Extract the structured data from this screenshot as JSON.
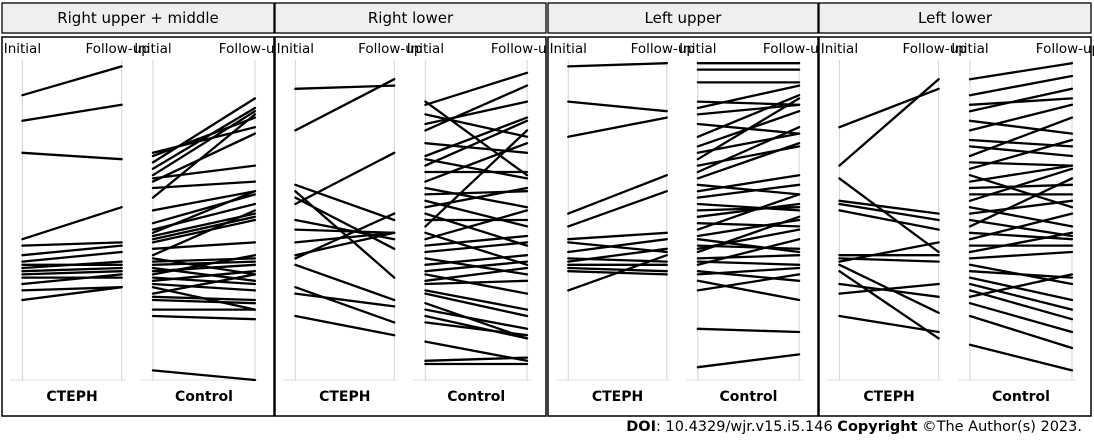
{
  "figure": {
    "footer": {
      "doi_label": "DOI",
      "doi_value": ": 10.4329/wjr.v15.i5.146",
      "copyright_label": "Copyright",
      "copyright_value": " ©The Author(s) 2023."
    }
  },
  "chart_data": [
    {
      "type": "line",
      "panel": "Right upper + middle",
      "groups": [
        {
          "name": "CTEPH",
          "x": [
            "Initial",
            "Follow-up"
          ],
          "ylim": [
            0,
            1
          ],
          "pairs": [
            [
              0.89,
              0.98
            ],
            [
              0.81,
              0.86
            ],
            [
              0.71,
              0.69
            ],
            [
              0.44,
              0.54
            ],
            [
              0.42,
              0.43
            ],
            [
              0.39,
              0.42
            ],
            [
              0.37,
              0.4
            ],
            [
              0.36,
              0.36
            ],
            [
              0.35,
              0.37
            ],
            [
              0.34,
              0.35
            ],
            [
              0.33,
              0.34
            ],
            [
              0.32,
              0.32
            ],
            [
              0.3,
              0.33
            ],
            [
              0.28,
              0.29
            ],
            [
              0.25,
              0.29
            ]
          ]
        },
        {
          "name": "Control",
          "x": [
            "Initial",
            "Follow-up"
          ],
          "ylim": [
            0,
            1
          ],
          "pairs": [
            [
              0.71,
              0.79
            ],
            [
              0.7,
              0.82
            ],
            [
              0.68,
              0.88
            ],
            [
              0.66,
              0.85
            ],
            [
              0.64,
              0.84
            ],
            [
              0.63,
              0.67
            ],
            [
              0.62,
              0.77
            ],
            [
              0.6,
              0.62
            ],
            [
              0.57,
              0.83
            ],
            [
              0.53,
              0.59
            ],
            [
              0.49,
              0.58
            ],
            [
              0.47,
              0.55
            ],
            [
              0.46,
              0.59
            ],
            [
              0.45,
              0.52
            ],
            [
              0.44,
              0.51
            ],
            [
              0.43,
              0.5
            ],
            [
              0.41,
              0.43
            ],
            [
              0.39,
              0.53
            ],
            [
              0.38,
              0.33
            ],
            [
              0.37,
              0.38
            ],
            [
              0.36,
              0.37
            ],
            [
              0.35,
              0.31
            ],
            [
              0.34,
              0.36
            ],
            [
              0.33,
              0.39
            ],
            [
              0.32,
              0.3
            ],
            [
              0.31,
              0.34
            ],
            [
              0.3,
              0.28
            ],
            [
              0.29,
              0.22
            ],
            [
              0.27,
              0.33
            ],
            [
              0.26,
              0.25
            ],
            [
              0.25,
              0.24
            ],
            [
              0.22,
              0.22
            ],
            [
              0.2,
              0.19
            ],
            [
              0.03,
              0.0
            ]
          ]
        }
      ]
    },
    {
      "type": "line",
      "panel": "Right lower",
      "groups": [
        {
          "name": "CTEPH",
          "x": [
            "Initial",
            "Follow-up"
          ],
          "ylim": [
            0,
            1
          ],
          "pairs": [
            [
              0.91,
              0.92
            ],
            [
              0.78,
              0.94
            ],
            [
              0.61,
              0.5
            ],
            [
              0.59,
              0.32
            ],
            [
              0.55,
              0.71
            ],
            [
              0.5,
              0.44
            ],
            [
              0.47,
              0.46
            ],
            [
              0.43,
              0.46
            ],
            [
              0.39,
              0.46
            ],
            [
              0.36,
              0.25
            ],
            [
              0.29,
              0.18
            ],
            [
              0.27,
              0.23
            ],
            [
              0.2,
              0.14
            ],
            [
              0.38,
              0.52
            ],
            [
              0.57,
              0.41
            ]
          ]
        },
        {
          "name": "Control",
          "x": [
            "Initial",
            "Follow-up"
          ],
          "ylim": [
            0,
            1
          ],
          "pairs": [
            [
              0.87,
              0.64
            ],
            [
              0.86,
              0.96
            ],
            [
              0.83,
              0.76
            ],
            [
              0.8,
              0.87
            ],
            [
              0.78,
              0.92
            ],
            [
              0.74,
              0.71
            ],
            [
              0.7,
              0.82
            ],
            [
              0.69,
              0.63
            ],
            [
              0.67,
              0.81
            ],
            [
              0.65,
              0.65
            ],
            [
              0.62,
              0.74
            ],
            [
              0.6,
              0.54
            ],
            [
              0.58,
              0.59
            ],
            [
              0.56,
              0.48
            ],
            [
              0.54,
              0.6
            ],
            [
              0.52,
              0.42
            ],
            [
              0.5,
              0.5
            ],
            [
              0.48,
              0.78
            ],
            [
              0.46,
              0.36
            ],
            [
              0.44,
              0.53
            ],
            [
              0.42,
              0.45
            ],
            [
              0.4,
              0.43
            ],
            [
              0.38,
              0.33
            ],
            [
              0.36,
              0.39
            ],
            [
              0.34,
              0.37
            ],
            [
              0.33,
              0.27
            ],
            [
              0.31,
              0.35
            ],
            [
              0.3,
              0.31
            ],
            [
              0.28,
              0.22
            ],
            [
              0.27,
              0.2
            ],
            [
              0.24,
              0.13
            ],
            [
              0.22,
              0.16
            ],
            [
              0.2,
              0.13
            ],
            [
              0.18,
              0.14
            ],
            [
              0.12,
              0.06
            ],
            [
              0.06,
              0.07
            ],
            [
              0.05,
              0.05
            ]
          ]
        }
      ]
    },
    {
      "type": "line",
      "panel": "Left upper",
      "groups": [
        {
          "name": "CTEPH",
          "x": [
            "Initial",
            "Follow-up"
          ],
          "ylim": [
            0,
            1
          ],
          "pairs": [
            [
              0.98,
              0.99
            ],
            [
              0.87,
              0.84
            ],
            [
              0.76,
              0.82
            ],
            [
              0.52,
              0.64
            ],
            [
              0.48,
              0.59
            ],
            [
              0.44,
              0.46
            ],
            [
              0.43,
              0.4
            ],
            [
              0.4,
              0.44
            ],
            [
              0.38,
              0.37
            ],
            [
              0.37,
              0.41
            ],
            [
              0.36,
              0.36
            ],
            [
              0.35,
              0.34
            ],
            [
              0.34,
              0.33
            ],
            [
              0.28,
              0.39
            ]
          ]
        },
        {
          "name": "Control",
          "x": [
            "Initial",
            "Follow-up"
          ],
          "ylim": [
            0,
            1
          ],
          "pairs": [
            [
              0.99,
              0.99
            ],
            [
              0.97,
              0.97
            ],
            [
              0.93,
              0.93
            ],
            [
              0.87,
              0.86
            ],
            [
              0.85,
              0.92
            ],
            [
              0.83,
              0.86
            ],
            [
              0.8,
              0.77
            ],
            [
              0.76,
              0.89
            ],
            [
              0.73,
              0.84
            ],
            [
              0.71,
              0.77
            ],
            [
              0.69,
              0.88
            ],
            [
              0.67,
              0.73
            ],
            [
              0.65,
              0.79
            ],
            [
              0.63,
              0.74
            ],
            [
              0.61,
              0.58
            ],
            [
              0.59,
              0.64
            ],
            [
              0.57,
              0.61
            ],
            [
              0.55,
              0.53
            ],
            [
              0.53,
              0.54
            ],
            [
              0.51,
              0.55
            ],
            [
              0.49,
              0.48
            ],
            [
              0.47,
              0.58
            ],
            [
              0.45,
              0.5
            ],
            [
              0.44,
              0.4
            ],
            [
              0.42,
              0.41
            ],
            [
              0.41,
              0.47
            ],
            [
              0.4,
              0.51
            ],
            [
              0.38,
              0.39
            ],
            [
              0.37,
              0.36
            ],
            [
              0.36,
              0.44
            ],
            [
              0.34,
              0.31
            ],
            [
              0.33,
              0.35
            ],
            [
              0.31,
              0.25
            ],
            [
              0.28,
              0.33
            ],
            [
              0.16,
              0.15
            ],
            [
              0.04,
              0.08
            ]
          ]
        }
      ]
    },
    {
      "type": "line",
      "panel": "Left lower",
      "groups": [
        {
          "name": "CTEPH",
          "x": [
            "Initial",
            "Follow-up"
          ],
          "ylim": [
            0,
            1
          ],
          "pairs": [
            [
              0.79,
              0.91
            ],
            [
              0.67,
              0.94
            ],
            [
              0.63,
              0.4
            ],
            [
              0.56,
              0.52
            ],
            [
              0.55,
              0.5
            ],
            [
              0.53,
              0.47
            ],
            [
              0.39,
              0.39
            ],
            [
              0.38,
              0.37
            ],
            [
              0.37,
              0.43
            ],
            [
              0.36,
              0.21
            ],
            [
              0.34,
              0.13
            ],
            [
              0.3,
              0.26
            ],
            [
              0.27,
              0.3
            ],
            [
              0.2,
              0.15
            ]
          ]
        },
        {
          "name": "Control",
          "x": [
            "Initial",
            "Follow-up"
          ],
          "ylim": [
            0,
            1
          ],
          "pairs": [
            [
              0.94,
              0.99
            ],
            [
              0.89,
              0.95
            ],
            [
              0.86,
              0.88
            ],
            [
              0.84,
              0.91
            ],
            [
              0.81,
              0.77
            ],
            [
              0.78,
              0.86
            ],
            [
              0.75,
              0.73
            ],
            [
              0.73,
              0.7
            ],
            [
              0.7,
              0.82
            ],
            [
              0.68,
              0.67
            ],
            [
              0.66,
              0.75
            ],
            [
              0.64,
              0.54
            ],
            [
              0.62,
              0.67
            ],
            [
              0.6,
              0.61
            ],
            [
              0.58,
              0.58
            ],
            [
              0.56,
              0.66
            ],
            [
              0.54,
              0.48
            ],
            [
              0.52,
              0.56
            ],
            [
              0.5,
              0.45
            ],
            [
              0.48,
              0.63
            ],
            [
              0.46,
              0.44
            ],
            [
              0.44,
              0.52
            ],
            [
              0.42,
              0.42
            ],
            [
              0.4,
              0.46
            ],
            [
              0.38,
              0.4
            ],
            [
              0.36,
              0.3
            ],
            [
              0.34,
              0.32
            ],
            [
              0.32,
              0.25
            ],
            [
              0.3,
              0.22
            ],
            [
              0.28,
              0.19
            ],
            [
              0.26,
              0.33
            ],
            [
              0.24,
              0.15
            ],
            [
              0.2,
              0.1
            ],
            [
              0.11,
              0.03
            ]
          ]
        }
      ]
    }
  ]
}
